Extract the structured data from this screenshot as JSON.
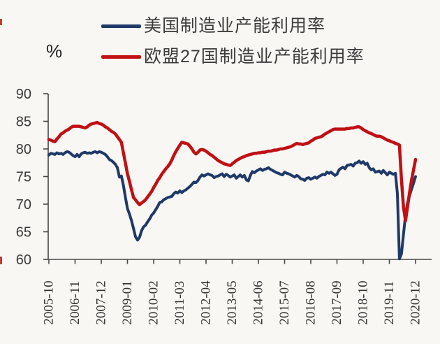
{
  "page": {
    "description": "制造业产能利用率对比图 (US vs EU-27 manufacturing capacity utilization line chart)"
  },
  "legend": {
    "items": [
      {
        "label": "美国制造业产能利用率",
        "color": "#1f3a68",
        "series_key": "us"
      },
      {
        "label": "欧盟27国制造业产能利用率",
        "color": "#c01014",
        "series_key": "eu27"
      }
    ]
  },
  "y_axis": {
    "unit_label": "%",
    "ticks": [
      90,
      85,
      80,
      75,
      70,
      65,
      60
    ],
    "min": 60,
    "max": 90
  },
  "x_axis": {
    "tick_labels": [
      "2005-10",
      "2006-11",
      "2007-12",
      "2009-01",
      "2010-02",
      "2011-03",
      "2012-04",
      "2013-05",
      "2014-06",
      "2015-07",
      "2016-08",
      "2017-09",
      "2018-10",
      "2019-11",
      "2020-12"
    ]
  },
  "colors": {
    "us_blue": "#1f3a68",
    "eu_red": "#c01014",
    "axis": "#474747",
    "tick_text": "#3a3a3a",
    "x_label_text": "#333333",
    "background": "#f8f7f4"
  },
  "chart_data": {
    "type": "line",
    "title": "",
    "xlabel": "",
    "ylabel": "%",
    "x_start": "2005-10",
    "x_end": "2020-12",
    "x_frequency": "monthly",
    "ylim": [
      60,
      90
    ],
    "grid": false,
    "legend_position": "top-left",
    "x_tick_labels": [
      "2005-10",
      "2006-11",
      "2007-12",
      "2009-01",
      "2010-02",
      "2011-03",
      "2012-04",
      "2013-05",
      "2014-06",
      "2015-07",
      "2016-08",
      "2017-09",
      "2018-10",
      "2019-11",
      "2020-12"
    ],
    "series": [
      {
        "name": "美国制造业产能利用率",
        "color": "#1f3a68",
        "stroke_width": 4,
        "values": [
          78.9,
          79.2,
          79.1,
          79.0,
          79.3,
          79.1,
          79.2,
          79.0,
          79.3,
          79.5,
          79.4,
          79.1,
          78.8,
          78.6,
          79.0,
          78.6,
          79.1,
          79.3,
          79.4,
          79.2,
          79.3,
          79.2,
          79.4,
          79.5,
          79.3,
          79.5,
          79.4,
          79.2,
          79.0,
          78.6,
          78.1,
          77.9,
          77.6,
          77.2,
          76.6,
          74.9,
          75.1,
          73.4,
          71.2,
          69.2,
          68.2,
          67.0,
          65.6,
          64.1,
          63.5,
          64.0,
          65.2,
          65.9,
          66.2,
          66.8,
          67.3,
          68.0,
          68.4,
          69.0,
          69.6,
          70.3,
          70.4,
          70.8,
          71.0,
          71.2,
          71.3,
          71.4,
          71.9,
          72.2,
          72.0,
          72.4,
          72.1,
          72.4,
          72.6,
          72.9,
          73.2,
          73.6,
          74.0,
          73.9,
          74.3,
          74.9,
          75.3,
          75.1,
          75.3,
          75.5,
          75.3,
          75.2,
          74.8,
          75.0,
          75.1,
          75.3,
          75.5,
          75.0,
          75.4,
          75.2,
          74.9,
          75.1,
          75.3,
          74.7,
          75.0,
          75.3,
          74.9,
          75.2,
          74.4,
          74.2,
          75.2,
          75.9,
          75.7,
          76.0,
          76.2,
          76.4,
          76.1,
          76.3,
          76.4,
          76.6,
          76.3,
          76.1,
          75.9,
          75.7,
          75.6,
          75.4,
          75.3,
          75.8,
          75.6,
          75.5,
          75.3,
          75.1,
          74.9,
          75.2,
          75.0,
          74.6,
          74.5,
          74.3,
          74.7,
          74.8,
          74.5,
          74.7,
          74.9,
          74.7,
          75.0,
          75.2,
          75.4,
          75.3,
          75.8,
          75.6,
          75.8,
          75.5,
          75.2,
          75.4,
          76.2,
          76.5,
          76.7,
          76.4,
          77.0,
          77.1,
          77.2,
          76.9,
          77.4,
          77.5,
          77.8,
          77.4,
          77.7,
          77.2,
          77.4,
          76.6,
          76.2,
          76.4,
          75.8,
          75.9,
          76.0,
          75.6,
          76.1,
          75.7,
          75.3,
          75.8,
          75.6,
          75.4,
          75.6,
          71.9,
          60.1,
          61.0,
          64.5,
          68.0,
          70.2,
          71.5,
          72.7,
          73.8,
          75.0
        ]
      },
      {
        "name": "欧盟27国制造业产能利用率",
        "color": "#c01014",
        "stroke_width": 4.5,
        "values": [
          81.7,
          81.6,
          81.4,
          81.3,
          81.8,
          82.2,
          82.7,
          82.9,
          83.2,
          83.4,
          83.6,
          83.9,
          84.1,
          84.1,
          84.1,
          84.1,
          84.0,
          83.9,
          83.8,
          84.0,
          84.3,
          84.5,
          84.6,
          84.7,
          84.8,
          84.6,
          84.5,
          84.3,
          84.0,
          83.8,
          83.5,
          83.2,
          83.0,
          82.7,
          82.2,
          81.7,
          81.2,
          79.3,
          77.4,
          75.5,
          74.1,
          72.6,
          71.2,
          70.8,
          70.3,
          69.9,
          70.2,
          70.5,
          70.8,
          71.3,
          71.8,
          72.3,
          73.0,
          73.6,
          74.3,
          74.8,
          75.4,
          75.9,
          76.4,
          76.8,
          77.3,
          78.0,
          78.8,
          79.5,
          80.1,
          80.7,
          81.2,
          81.1,
          81.0,
          80.9,
          80.5,
          80.0,
          79.4,
          79.1,
          79.4,
          79.8,
          79.9,
          79.8,
          79.6,
          79.3,
          79.0,
          78.8,
          78.5,
          78.2,
          77.9,
          77.7,
          77.5,
          77.3,
          77.2,
          77.1,
          77.0,
          77.3,
          77.6,
          77.9,
          78.1,
          78.3,
          78.5,
          78.6,
          78.8,
          78.9,
          79.0,
          79.1,
          79.2,
          79.2,
          79.3,
          79.3,
          79.4,
          79.4,
          79.5,
          79.6,
          79.6,
          79.7,
          79.8,
          79.8,
          79.9,
          80.0,
          80.0,
          80.1,
          80.2,
          80.3,
          80.4,
          80.6,
          80.8,
          81.0,
          80.9,
          80.9,
          80.8,
          80.9,
          81.0,
          81.1,
          81.4,
          81.6,
          81.9,
          82.0,
          82.1,
          82.2,
          82.4,
          82.7,
          82.9,
          83.1,
          83.3,
          83.5,
          83.6,
          83.6,
          83.6,
          83.6,
          83.6,
          83.6,
          83.7,
          83.7,
          83.8,
          83.8,
          83.9,
          84.0,
          84.0,
          83.8,
          83.5,
          83.3,
          83.1,
          82.9,
          82.8,
          82.6,
          82.4,
          82.3,
          82.3,
          82.2,
          82.0,
          81.8,
          81.6,
          81.5,
          81.3,
          81.2,
          81.0,
          80.9,
          80.7,
          74.5,
          69.5,
          67.0,
          69.5,
          72.0,
          74.3,
          76.2,
          78.1
        ]
      }
    ]
  }
}
